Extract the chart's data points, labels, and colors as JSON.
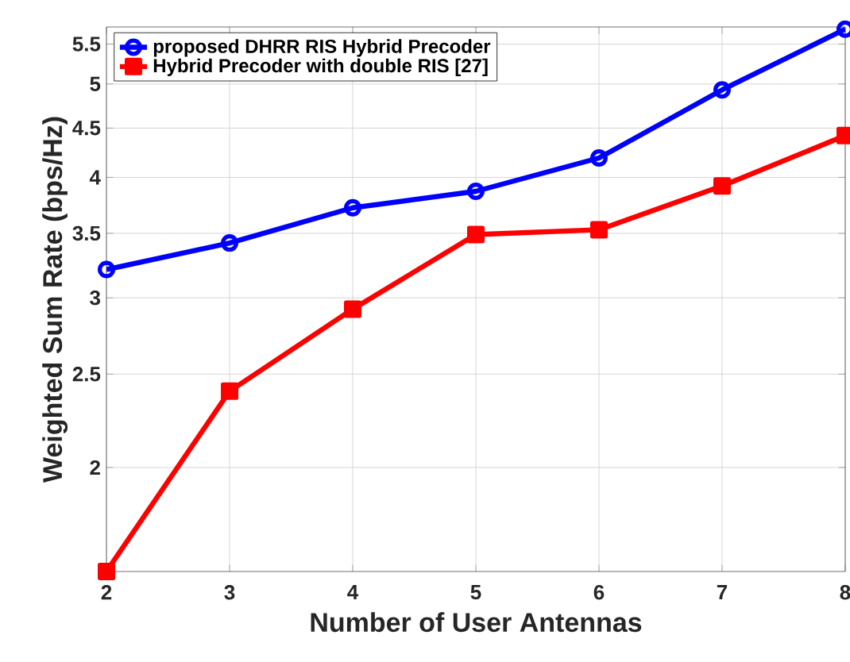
{
  "chart_data": {
    "type": "line",
    "xlabel": "Number of User Antennas",
    "ylabel": "Weighted Sum Rate (bps/Hz)",
    "x": [
      2,
      3,
      4,
      5,
      6,
      7,
      8
    ],
    "series": [
      {
        "name": "proposed DHRR RIS Hybrid Precoder",
        "color": "#0000ff",
        "marker": "circle",
        "values": [
          3.21,
          3.42,
          3.72,
          3.87,
          4.19,
          4.93,
          5.7
        ]
      },
      {
        "name": "Hybrid Precoder with double RIS [27]",
        "color": "#ff0000",
        "marker": "square",
        "values": [
          1.56,
          2.4,
          2.92,
          3.49,
          3.53,
          3.92,
          4.42
        ]
      }
    ],
    "log": "y",
    "xlim": [
      2,
      8
    ],
    "ylim": [
      1.56,
      5.73
    ],
    "xticks": [
      2,
      3,
      4,
      5,
      6,
      7,
      8
    ],
    "yticks": [
      2,
      2.5,
      3,
      3.5,
      4,
      4.5,
      5,
      5.5
    ],
    "grid": true,
    "legend": "top left",
    "line_style": "solid"
  }
}
